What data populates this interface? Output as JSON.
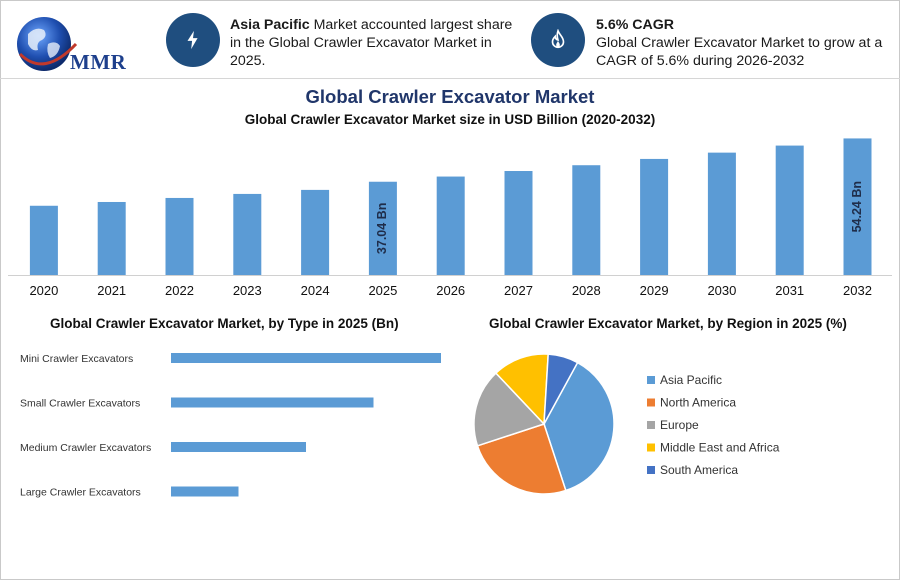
{
  "logo": {
    "text": "MMR"
  },
  "highlights": [
    {
      "icon": "lightning-icon",
      "bold": "Asia Pacific",
      "text": " Market accounted largest share in the Global Crawler Excavator Market in 2025."
    },
    {
      "icon": "flame-icon",
      "bold": "5.6% CAGR",
      "text": "Global Crawler Excavator Market to grow at a CAGR of 5.6% during 2026-2032"
    }
  ],
  "header": {
    "title": "Global Crawler Excavator Market",
    "subtitle": "Global Crawler Excavator Market size in USD Billion (2020-2032)"
  },
  "colors": {
    "bar": "#5b9bd5",
    "navy": "#1f4e7f",
    "pie": [
      "#5b9bd5",
      "#ed7d31",
      "#a5a5a5",
      "#ffc000",
      "#4472c4"
    ]
  },
  "chart_data": [
    {
      "type": "bar",
      "title": "Global Crawler Excavator Market size in USD Billion (2020-2032)",
      "categories": [
        "2020",
        "2021",
        "2022",
        "2023",
        "2024",
        "2025",
        "2026",
        "2027",
        "2028",
        "2029",
        "2030",
        "2031",
        "2032"
      ],
      "values": [
        27.5,
        29.0,
        30.6,
        32.2,
        33.8,
        37.04,
        39.1,
        41.3,
        43.6,
        46.1,
        48.6,
        51.4,
        54.24
      ],
      "data_labels": {
        "2025": "37.04 Bn",
        "2032": "54.24 Bn"
      },
      "ylim": [
        0,
        56
      ],
      "xlabel": "",
      "ylabel": ""
    },
    {
      "type": "bar",
      "orientation": "horizontal",
      "title": "Global Crawler Excavator Market, by Type in 2025 (Bn)",
      "categories": [
        "Mini Crawler Excavators",
        "Small Crawler Excavators",
        "Medium Crawler Excavators",
        "Large Crawler Excavators"
      ],
      "values": [
        14.0,
        10.5,
        7.0,
        3.5
      ],
      "xlim": [
        0,
        14.0
      ]
    },
    {
      "type": "pie",
      "title": "Global Crawler Excavator Market, by Region in 2025 (%)",
      "labels": [
        "Asia Pacific",
        "North America",
        "Europe",
        "Middle East and Africa",
        "South America"
      ],
      "values": [
        37,
        25,
        18,
        13,
        7
      ],
      "legend": "right"
    }
  ]
}
